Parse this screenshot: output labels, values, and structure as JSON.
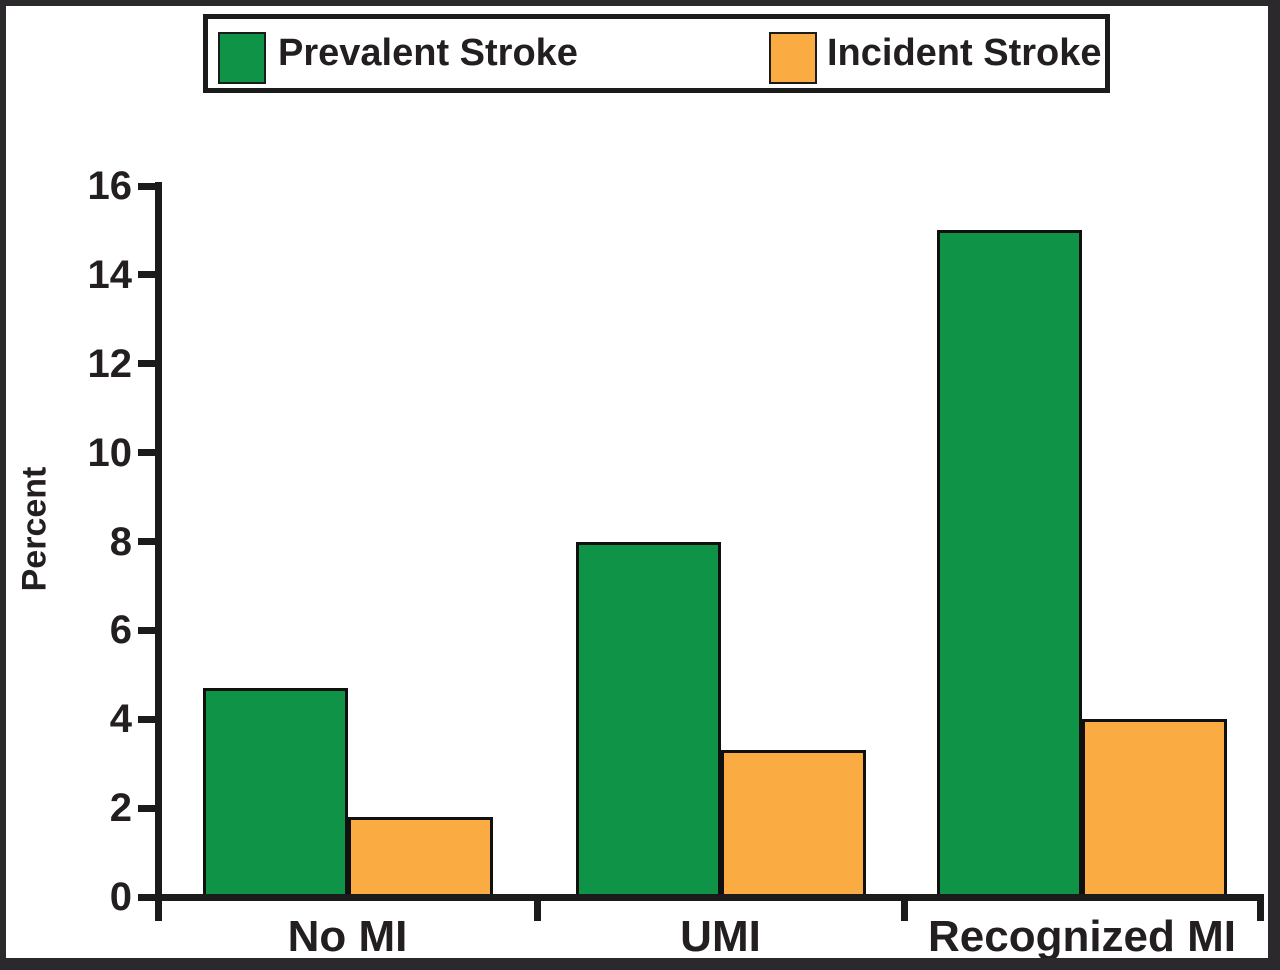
{
  "chart_data": {
    "type": "bar",
    "title": "",
    "categories": [
      "No MI",
      "UMI",
      "Recognized MI"
    ],
    "series": [
      {
        "name": "Prevalent Stroke",
        "color": "#0f9447",
        "values": [
          4.7,
          8.0,
          15.0
        ]
      },
      {
        "name": "Incident Stroke",
        "color": "#faac43",
        "values": [
          1.8,
          3.3,
          4.0
        ]
      }
    ],
    "xlabel": "",
    "ylabel": "Percent",
    "ylim": [
      0,
      16
    ],
    "yticks": [
      0,
      2,
      4,
      6,
      8,
      10,
      12,
      14,
      16
    ],
    "grid": false,
    "legend_position": "top",
    "bar_outline_color": "#101010",
    "axis_color": "#1b1b1b",
    "text_color": "#231f20",
    "frame_color": "#2b292c",
    "background_color": "#ffffff"
  }
}
